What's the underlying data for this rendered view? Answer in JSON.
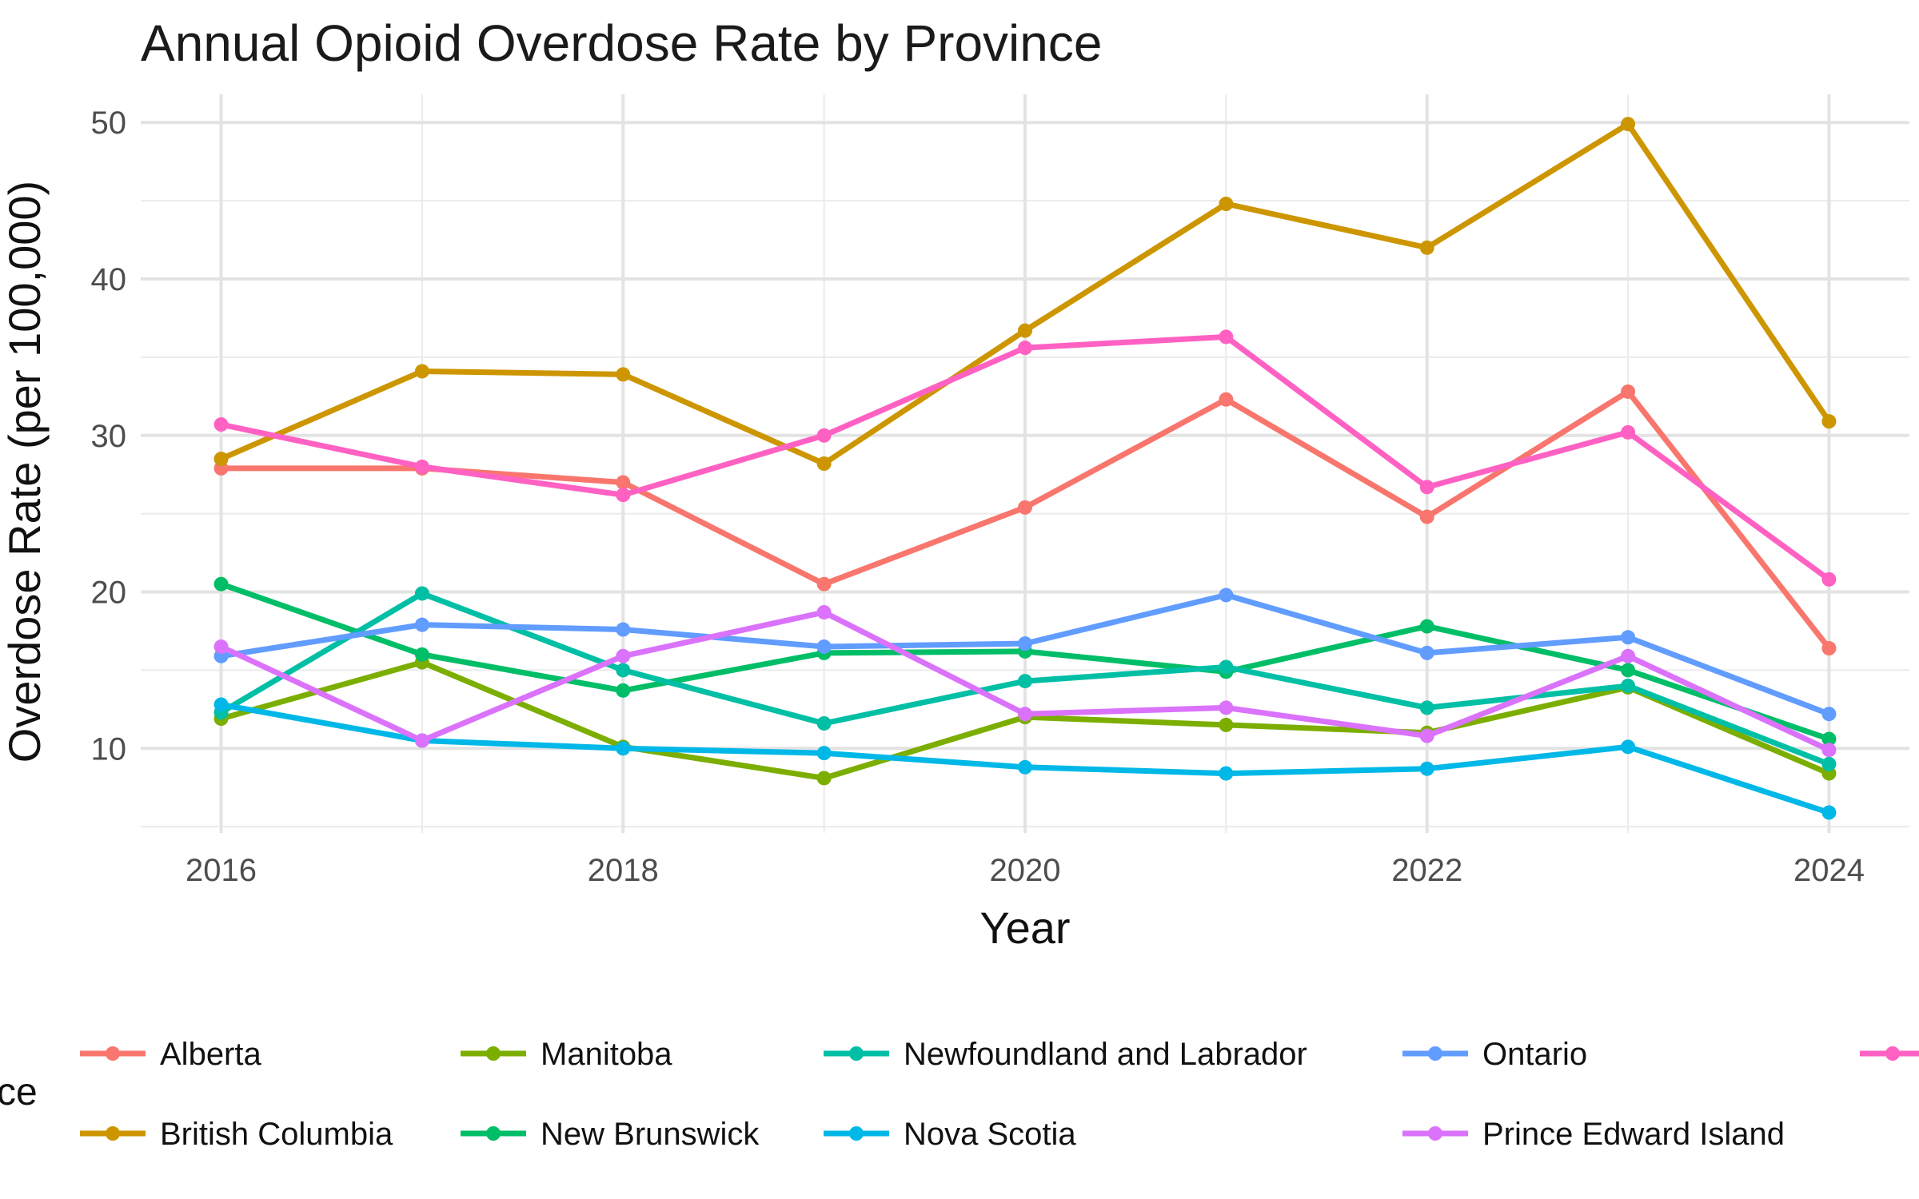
{
  "chart_data": {
    "type": "line",
    "title": "Annual Opioid Overdose Rate by Province",
    "xlabel": "Year",
    "ylabel": "Overdose Rate (per 100,000)",
    "legend_title": "ce",
    "legend_position": "bottom",
    "grid": true,
    "x": [
      2016,
      2017,
      2018,
      2019,
      2020,
      2021,
      2022,
      2023,
      2024
    ],
    "xlim": [
      2015.6,
      2024.4
    ],
    "ylim": [
      4.6,
      51.8
    ],
    "x_ticks": [
      2016,
      2018,
      2020,
      2022,
      2024
    ],
    "y_ticks": [
      10,
      20,
      30,
      40,
      50
    ],
    "series": [
      {
        "name": "Alberta",
        "color": "#F8766D",
        "values": [
          27.9,
          27.9,
          27.0,
          20.5,
          25.4,
          32.3,
          24.8,
          32.8,
          16.4
        ]
      },
      {
        "name": "British Columbia",
        "color": "#CD9600",
        "values": [
          28.5,
          34.1,
          33.9,
          28.2,
          36.7,
          44.8,
          42.0,
          49.9,
          30.9
        ]
      },
      {
        "name": "Manitoba",
        "color": "#7CAE00",
        "values": [
          11.9,
          15.5,
          10.1,
          8.1,
          12.0,
          11.5,
          11.0,
          13.9,
          8.4
        ]
      },
      {
        "name": "New Brunswick",
        "color": "#00BE67",
        "values": [
          20.5,
          16.0,
          13.7,
          16.1,
          16.2,
          14.9,
          17.8,
          15.0,
          10.6
        ]
      },
      {
        "name": "Newfoundland and Labrador",
        "color": "#00BFA5",
        "values": [
          12.3,
          19.9,
          15.0,
          11.6,
          14.3,
          15.2,
          12.6,
          14.0,
          9.0
        ]
      },
      {
        "name": "Nova Scotia",
        "color": "#00B8E7",
        "values": [
          12.8,
          10.5,
          10.0,
          9.7,
          8.8,
          8.4,
          8.7,
          10.1,
          5.9
        ]
      },
      {
        "name": "Ontario",
        "color": "#619CFF",
        "values": [
          15.9,
          17.9,
          17.6,
          16.5,
          16.7,
          19.8,
          16.1,
          17.1,
          12.2
        ]
      },
      {
        "name": "Prince Edward Island",
        "color": "#DB72FB",
        "values": [
          16.5,
          10.5,
          15.9,
          18.7,
          12.2,
          12.6,
          10.8,
          15.9,
          9.9
        ]
      },
      {
        "name": "",
        "color": "#FF61C3",
        "values": [
          30.7,
          28.0,
          26.2,
          30.0,
          35.6,
          36.3,
          26.7,
          30.2,
          20.8
        ]
      }
    ],
    "legend_rows": [
      [
        "Alberta",
        "Manitoba",
        "Newfoundland and Labrador",
        "Ontario",
        ""
      ],
      [
        "British Columbia",
        "New Brunswick",
        "Nova Scotia",
        "Prince Edward Island"
      ]
    ]
  }
}
